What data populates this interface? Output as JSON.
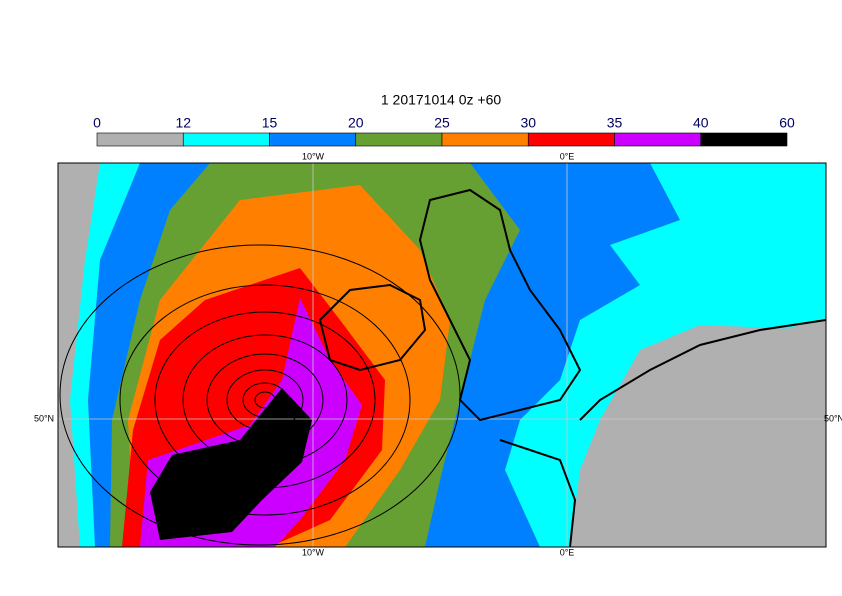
{
  "title": "1 20171014 0z +60",
  "colorbar": {
    "levels": [
      0,
      12,
      15,
      20,
      25,
      30,
      35,
      40,
      60
    ],
    "colors": [
      "#b0b0b0",
      "#00ffff",
      "#0080ff",
      "#66a033",
      "#ff8000",
      "#ff0000",
      "#cc00ff",
      "#000000"
    ]
  },
  "map": {
    "lon_labels": [
      "10°W",
      "0°E"
    ],
    "lat_labels": [
      "50°N"
    ]
  }
}
